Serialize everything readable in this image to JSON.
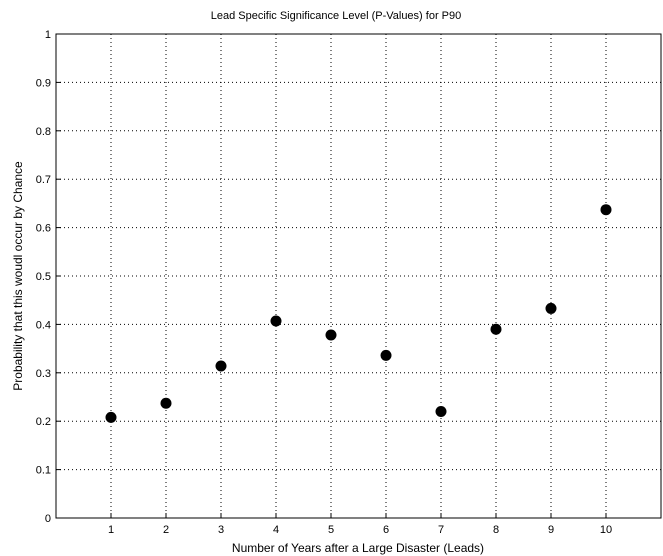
{
  "chart_data": {
    "type": "scatter",
    "title": "Lead Specific Significance Level (P-Values) for P90",
    "xlabel": "Number of Years after a Large Disaster (Leads)",
    "ylabel": "Probability that this woudl occur by Chance",
    "xlim": [
      0,
      11
    ],
    "ylim": [
      0,
      1
    ],
    "x_ticks": [
      1,
      2,
      3,
      4,
      5,
      6,
      7,
      8,
      9,
      10
    ],
    "y_ticks": [
      0,
      0.1,
      0.2,
      0.3,
      0.4,
      0.5,
      0.6,
      0.7,
      0.8,
      0.9,
      1
    ],
    "grid": true,
    "grid_style": "dotted",
    "marker_color": "#000000",
    "series": [
      {
        "x": [
          1,
          2,
          3,
          4,
          5,
          6,
          7,
          8,
          9,
          10
        ],
        "y": [
          0.208,
          0.237,
          0.314,
          0.407,
          0.378,
          0.336,
          0.22,
          0.39,
          0.433,
          0.637
        ]
      }
    ]
  }
}
